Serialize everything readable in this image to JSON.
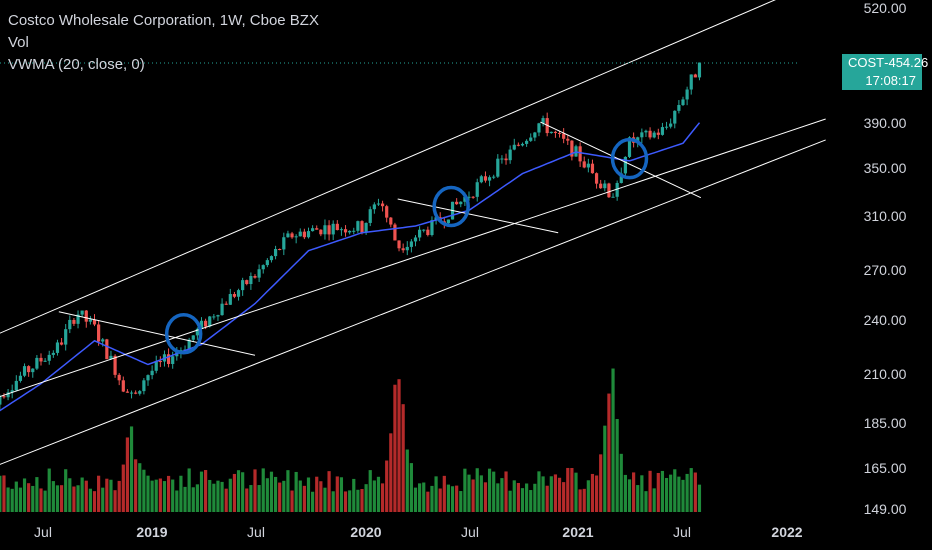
{
  "header": {
    "title": "Costco Wholesale Corporation, 1W, Cboe BZX",
    "vol_label": "Vol",
    "vwma_label": "VWMA (20, close, 0)"
  },
  "price_tag": {
    "symbol": "COST",
    "separator": "-",
    "price": "454.26",
    "countdown": "17:08:17"
  },
  "colors": {
    "up": "#26a69a",
    "down": "#ef5350",
    "vol_up": "#1f8a3a",
    "vol_down": "#b52a2a",
    "vwma": "#3d5afe",
    "channel": "#ffffff",
    "circles": "#1565c0",
    "tag_bg": "#26a69a",
    "axis_text": "#d1d4dc"
  },
  "chart_data": {
    "type": "candlestick",
    "title": "Costco Wholesale Corporation, 1W, Cboe BZX",
    "y_axis_ticks": [
      "520.00",
      "390.00",
      "350.00",
      "310.00",
      "270.00",
      "240.00",
      "210.00",
      "185.00",
      "165.00",
      "149.00"
    ],
    "y_scale": "log",
    "x_axis_ticks": [
      "Jul",
      "2019",
      "Jul",
      "2020",
      "Jul",
      "2021",
      "Jul",
      "2022"
    ],
    "last_price": 454.26,
    "close_anchors": [
      {
        "date": "2018-04",
        "value": 194
      },
      {
        "date": "2018-06",
        "value": 210
      },
      {
        "date": "2018-08",
        "value": 225
      },
      {
        "date": "2018-09",
        "value": 245
      },
      {
        "date": "2018-10",
        "value": 235
      },
      {
        "date": "2018-12",
        "value": 198
      },
      {
        "date": "2019-01",
        "value": 210
      },
      {
        "date": "2019-03",
        "value": 225
      },
      {
        "date": "2019-05",
        "value": 248
      },
      {
        "date": "2019-07",
        "value": 268
      },
      {
        "date": "2019-09",
        "value": 296
      },
      {
        "date": "2019-11",
        "value": 302
      },
      {
        "date": "2020-01",
        "value": 302
      },
      {
        "date": "2020-02",
        "value": 325
      },
      {
        "date": "2020-03",
        "value": 288
      },
      {
        "date": "2020-05",
        "value": 303
      },
      {
        "date": "2020-07",
        "value": 328
      },
      {
        "date": "2020-09",
        "value": 358
      },
      {
        "date": "2020-11",
        "value": 392
      },
      {
        "date": "2021-01",
        "value": 363
      },
      {
        "date": "2021-03",
        "value": 325
      },
      {
        "date": "2021-04",
        "value": 372
      },
      {
        "date": "2021-06",
        "value": 385
      },
      {
        "date": "2021-08",
        "value": 454.26
      }
    ],
    "vwma_series": [
      {
        "date": "2018-04",
        "value": 188
      },
      {
        "date": "2018-07",
        "value": 205
      },
      {
        "date": "2018-10",
        "value": 228
      },
      {
        "date": "2019-01",
        "value": 215
      },
      {
        "date": "2019-04",
        "value": 226
      },
      {
        "date": "2019-07",
        "value": 250
      },
      {
        "date": "2019-10",
        "value": 285
      },
      {
        "date": "2020-01",
        "value": 298
      },
      {
        "date": "2020-04",
        "value": 303
      },
      {
        "date": "2020-07",
        "value": 315
      },
      {
        "date": "2020-10",
        "value": 345
      },
      {
        "date": "2021-01",
        "value": 364
      },
      {
        "date": "2021-04",
        "value": 356
      },
      {
        "date": "2021-07",
        "value": 372
      },
      {
        "date": "2021-08",
        "value": 393
      }
    ],
    "channel_lines": [
      {
        "name": "upper",
        "from": {
          "date": "2018-03",
          "value": 225
        },
        "to": {
          "date": "2022-03",
          "value": 560
        }
      },
      {
        "name": "middle",
        "from": {
          "date": "2018-01",
          "value": 188
        },
        "to": {
          "date": "2022-03",
          "value": 395
        }
      },
      {
        "name": "lower",
        "from": {
          "date": "2018-03",
          "value": 163
        },
        "to": {
          "date": "2022-03",
          "value": 375
        }
      }
    ],
    "trend_lines": [
      {
        "from": {
          "date": "2018-08",
          "value": 245
        },
        "to": {
          "date": "2019-07",
          "value": 220
        }
      },
      {
        "from": {
          "date": "2020-03",
          "value": 324
        },
        "to": {
          "date": "2020-12",
          "value": 298
        }
      },
      {
        "from": {
          "date": "2020-11",
          "value": 392
        },
        "to": {
          "date": "2021-08",
          "value": 325
        }
      }
    ],
    "highlight_circles": [
      {
        "date": "2019-03",
        "value": 232
      },
      {
        "date": "2020-06",
        "value": 318
      },
      {
        "date": "2021-04",
        "value": 358
      }
    ],
    "volume_spikes": [
      {
        "date": "2020-03",
        "relative": 0.95
      },
      {
        "date": "2021-03",
        "relative": 0.95
      },
      {
        "date": "2018-12",
        "relative": 0.55
      }
    ]
  }
}
